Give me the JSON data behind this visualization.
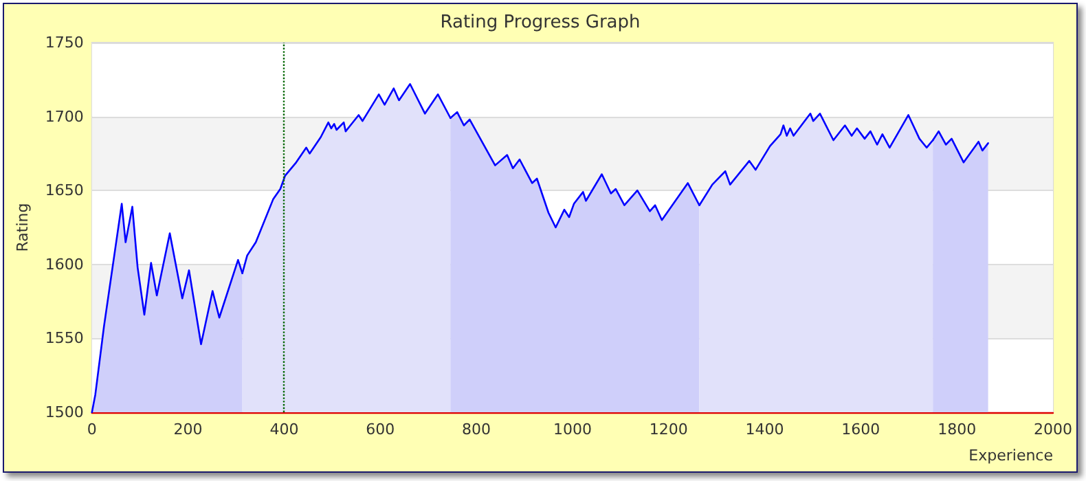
{
  "chart_data": {
    "type": "area",
    "title": "Rating Progress Graph",
    "xlabel": "Experience",
    "ylabel": "Rating",
    "xlim": [
      0,
      2000
    ],
    "xticks": [
      0,
      200,
      400,
      600,
      800,
      1000,
      1200,
      1400,
      1600,
      1800,
      2000
    ],
    "ylim": [
      1500,
      1750
    ],
    "yticks": [
      1500,
      1550,
      1600,
      1650,
      1700,
      1750
    ],
    "grid": "y",
    "marker": "none",
    "line_style": "solid",
    "series": [
      {
        "color": "#0000ff",
        "x": [
          0,
          7,
          25,
          62,
          70,
          84,
          95,
          109,
          123,
          135,
          162,
          188,
          202,
          227,
          251,
          265,
          304,
          313
        ],
        "values": [
          1500,
          1512,
          1558,
          1641,
          1615,
          1639,
          1598,
          1566,
          1601,
          1579,
          1621,
          1577,
          1596,
          1546,
          1582,
          1564,
          1603,
          1594
        ]
      },
      {
        "color": "#0000ff",
        "x": [
          313,
          323,
          341,
          377,
          392,
          402,
          425,
          446,
          453,
          476,
          492,
          498,
          504,
          509,
          524,
          528,
          555,
          563,
          597,
          609,
          628,
          639,
          662,
          693,
          720,
          746
        ],
        "values": [
          1594,
          1606,
          1615,
          1644,
          1651,
          1660,
          1669,
          1679,
          1675,
          1686,
          1696,
          1692,
          1695,
          1691,
          1696,
          1690,
          1701,
          1697,
          1715,
          1708,
          1719,
          1711,
          1722,
          1702,
          1715,
          1699
        ]
      },
      {
        "color": "#0000ff",
        "x": [
          746,
          760,
          774,
          786,
          839,
          864,
          876,
          890,
          916,
          926,
          950,
          965,
          983,
          993,
          1003,
          1022,
          1028,
          1061,
          1080,
          1090,
          1108,
          1135,
          1161,
          1172,
          1186,
          1240,
          1264
        ],
        "values": [
          1699,
          1703,
          1694,
          1698,
          1667,
          1674,
          1665,
          1671,
          1655,
          1658,
          1635,
          1625,
          1637,
          1632,
          1641,
          1649,
          1643,
          1661,
          1648,
          1651,
          1640,
          1650,
          1636,
          1640,
          1630,
          1655,
          1640
        ]
      },
      {
        "color": "#0000ff",
        "x": [
          1264,
          1291,
          1318,
          1328,
          1368,
          1381,
          1411,
          1433,
          1439,
          1446,
          1453,
          1460,
          1495,
          1501,
          1515,
          1543,
          1567,
          1581,
          1592,
          1608,
          1620,
          1634,
          1645,
          1660,
          1699,
          1722,
          1737,
          1750
        ],
        "values": [
          1640,
          1654,
          1663,
          1654,
          1670,
          1664,
          1680,
          1688,
          1694,
          1687,
          1692,
          1687,
          1702,
          1697,
          1702,
          1684,
          1694,
          1687,
          1692,
          1685,
          1690,
          1681,
          1688,
          1679,
          1701,
          1685,
          1679,
          1684
        ]
      },
      {
        "color": "#0000ff",
        "x": [
          1750,
          1762,
          1777,
          1789,
          1814,
          1845,
          1853,
          1865
        ],
        "values": [
          1684,
          1690,
          1681,
          1685,
          1669,
          1683,
          1677,
          1682
        ]
      }
    ],
    "ref_lines": [
      {
        "axis": "x",
        "value": 400,
        "color": "#006600",
        "line_style": "dotted"
      }
    ]
  }
}
